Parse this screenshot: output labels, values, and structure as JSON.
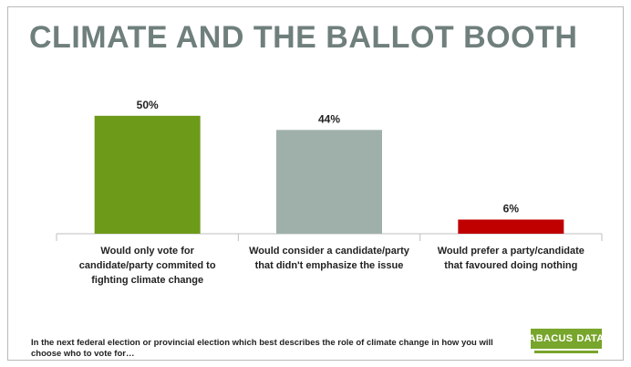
{
  "title": "CLIMATE AND THE BALLOT BOOTH",
  "footnote": "In the next federal election or provincial election which best describes the role of climate change in how you will choose who to vote for…",
  "logo": {
    "word1": "ABACUS",
    "word2": "DATA",
    "color": "#78a52b"
  },
  "chart_data": {
    "type": "bar",
    "title": "CLIMATE AND THE BALLOT BOOTH",
    "xlabel": "",
    "ylabel": "",
    "ylim": [
      0,
      60
    ],
    "grid": false,
    "categories": [
      [
        "Would only vote for",
        "candidate/party commited to",
        "fighting climate change"
      ],
      [
        "Would consider a candidate/party",
        "that didn't emphasize the issue"
      ],
      [
        "Would prefer a party/candidate",
        "that favoured doing nothing"
      ]
    ],
    "values": [
      50,
      44,
      6
    ],
    "labels": [
      "50%",
      "44%",
      "6%"
    ],
    "colors": [
      "#6e9a1a",
      "#9fb0ab",
      "#c00000"
    ]
  }
}
